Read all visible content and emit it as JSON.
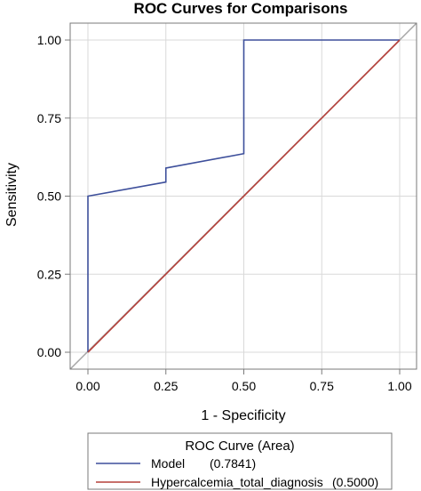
{
  "chart_data": {
    "type": "line",
    "title": "ROC Curves for Comparisons",
    "xlabel": "1 - Specificity",
    "ylabel": "Sensitivity",
    "xlim": [
      0,
      1
    ],
    "ylim": [
      0,
      1
    ],
    "x_ticks": [
      "0.00",
      "0.25",
      "0.50",
      "0.75",
      "1.00"
    ],
    "y_ticks": [
      "0.00",
      "0.25",
      "0.50",
      "0.75",
      "1.00"
    ],
    "grid": true,
    "reference_line": true,
    "legend": {
      "title": "ROC Curve (Area)",
      "placement": "bottom",
      "entries": [
        {
          "label": "Model",
          "area": "(0.7841)"
        },
        {
          "label": "Hypercalcemia_total_diagnosis",
          "area": "(0.5000)"
        }
      ]
    },
    "series": [
      {
        "name": "Model",
        "color": "#3d4f9b",
        "points": [
          [
            0,
            0
          ],
          [
            0,
            0.5
          ],
          [
            0.25,
            0.545
          ],
          [
            0.25,
            0.59
          ],
          [
            0.5,
            0.636
          ],
          [
            0.5,
            1.0
          ],
          [
            1.0,
            1.0
          ]
        ]
      },
      {
        "name": "Hypercalcemia_total_diagnosis",
        "color": "#b5403a",
        "points": [
          [
            0,
            0
          ],
          [
            1.0,
            1.0
          ]
        ]
      }
    ],
    "colors": {
      "grid": "#d9d9d9",
      "reference": "#a6a6a6",
      "frame": "#7a7a7a"
    }
  }
}
